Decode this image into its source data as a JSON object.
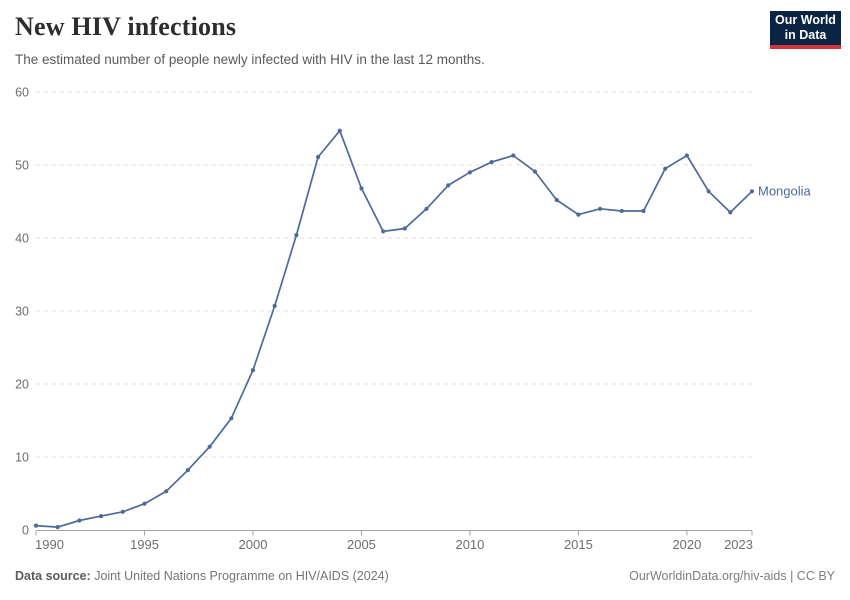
{
  "header": {
    "title": "New HIV infections",
    "subtitle": "The estimated number of people newly infected with HIV in the last 12 months."
  },
  "logo": {
    "line1": "Our World",
    "line2": "in Data",
    "bg_color": "#0b2442",
    "accent_color": "#d0353b"
  },
  "chart_data": {
    "type": "line",
    "title": "New HIV infections",
    "xlabel": "",
    "ylabel": "",
    "x": [
      1990,
      1991,
      1992,
      1993,
      1994,
      1995,
      1996,
      1997,
      1998,
      1999,
      2000,
      2001,
      2002,
      2003,
      2004,
      2005,
      2006,
      2007,
      2008,
      2009,
      2010,
      2011,
      2012,
      2013,
      2014,
      2015,
      2016,
      2017,
      2018,
      2019,
      2020,
      2021,
      2022,
      2023
    ],
    "series": [
      {
        "name": "Mongolia",
        "color": "#4c6a9c",
        "values": [
          0.6,
          0.4,
          1.3,
          1.9,
          2.5,
          3.6,
          5.3,
          8.2,
          11.4,
          15.3,
          21.9,
          30.7,
          40.4,
          51.1,
          54.7,
          46.8,
          40.9,
          41.3,
          44.0,
          47.2,
          49.0,
          50.4,
          51.3,
          49.1,
          45.2,
          43.2,
          44.0,
          43.7,
          43.7,
          49.5,
          51.3,
          46.4,
          43.5,
          46.4
        ]
      }
    ],
    "ylim": [
      0,
      60
    ],
    "yticks": [
      0,
      10,
      20,
      30,
      40,
      50,
      60
    ],
    "xticks": [
      1990,
      1995,
      2000,
      2005,
      2010,
      2015,
      2020,
      2023
    ],
    "grid": "horizontal-dashed",
    "legend": "line-end-label"
  },
  "colors": {
    "line": "#4c6a9c",
    "grid": "#dedede",
    "axis": "#a3a3a3",
    "tick_label": "#6e6e6e"
  },
  "footer": {
    "source_label": "Data source:",
    "source_value": " Joint United Nations Programme on HIV/AIDS (2024)",
    "credit": "OurWorldinData.org/hiv-aids | CC BY"
  }
}
